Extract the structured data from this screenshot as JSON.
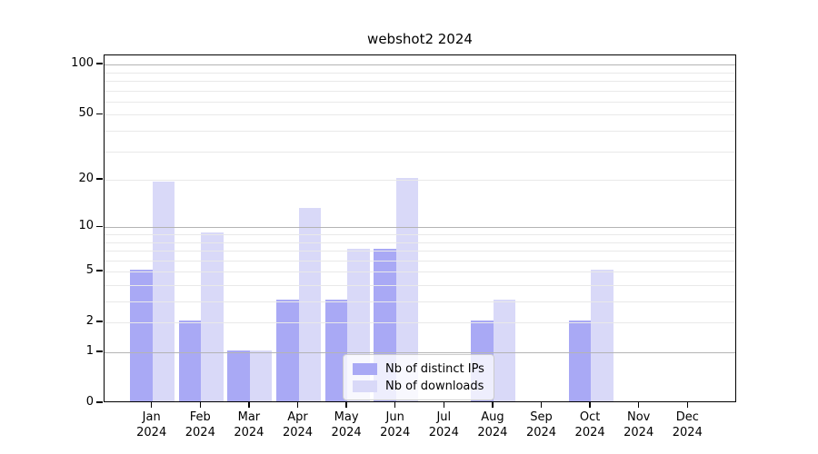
{
  "title": "webshot2 2024",
  "colors": {
    "series_ips": "#a9a9f5",
    "series_downloads": "#d9d9f8",
    "grid_major": "#b4b4b4",
    "grid_minor": "#e9e9e9",
    "spine": "#000000",
    "legend_border": "#cccccc"
  },
  "chart_data": {
    "type": "bar",
    "title": "webshot2 2024",
    "categories": [
      {
        "month": "Jan",
        "year": "2024"
      },
      {
        "month": "Feb",
        "year": "2024"
      },
      {
        "month": "Mar",
        "year": "2024"
      },
      {
        "month": "Apr",
        "year": "2024"
      },
      {
        "month": "May",
        "year": "2024"
      },
      {
        "month": "Jun",
        "year": "2024"
      },
      {
        "month": "Jul",
        "year": "2024"
      },
      {
        "month": "Aug",
        "year": "2024"
      },
      {
        "month": "Sep",
        "year": "2024"
      },
      {
        "month": "Oct",
        "year": "2024"
      },
      {
        "month": "Nov",
        "year": "2024"
      },
      {
        "month": "Dec",
        "year": "2024"
      }
    ],
    "series": [
      {
        "name": "Nb of distinct IPs",
        "color": "#a9a9f5",
        "values": [
          5,
          2,
          1,
          3,
          3,
          7,
          0,
          2,
          0,
          2,
          0,
          0
        ]
      },
      {
        "name": "Nb of downloads",
        "color": "#d9d9f8",
        "values": [
          19,
          9,
          1,
          13,
          7,
          20,
          0,
          3,
          0,
          5,
          0,
          0
        ]
      }
    ],
    "y_axis": {
      "scale": "log10(value+1)",
      "tick_labels": [
        100,
        50,
        20,
        10,
        5,
        2,
        1,
        0
      ],
      "major_gridlines": [
        1,
        10,
        100
      ],
      "minor_gridlines": [
        2,
        3,
        4,
        5,
        6,
        7,
        8,
        9,
        20,
        30,
        40,
        50,
        60,
        70,
        80,
        90
      ],
      "range": [
        0,
        114
      ]
    },
    "x_axis": {
      "label_format": "month over year"
    },
    "grid": "both, drawn above bars",
    "legend_position": "lower center, inside axes"
  }
}
